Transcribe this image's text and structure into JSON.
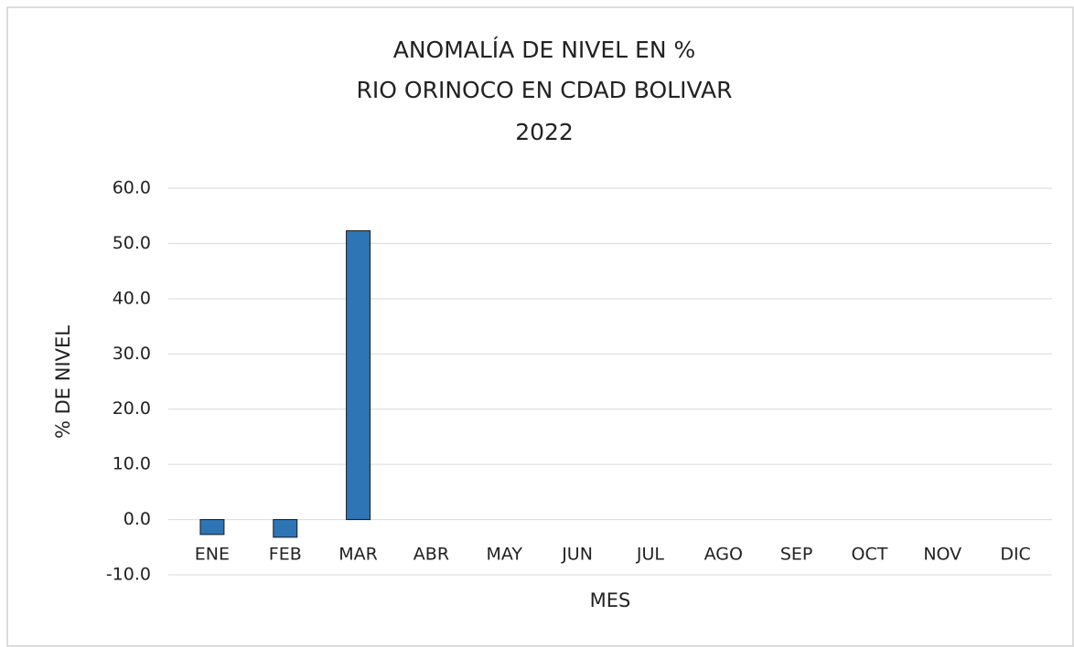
{
  "chart_data": {
    "type": "bar",
    "title": [
      "ANOMALÍA DE NIVEL EN %",
      "RIO ORINOCO EN CDAD BOLIVAR",
      "2022"
    ],
    "x_label": "MES",
    "y_label": "% DE NIVEL",
    "categories": [
      "ENE",
      "FEB",
      "MAR",
      "ABR",
      "MAY",
      "JUN",
      "JUL",
      "AGO",
      "SEP",
      "OCT",
      "NOV",
      "DIC"
    ],
    "values": [
      -2.7,
      -3.2,
      52.3,
      null,
      null,
      null,
      null,
      null,
      null,
      null,
      null,
      null
    ],
    "color": "#2e75b6",
    "ylim": [
      -10,
      60
    ],
    "yticks": [
      {
        "value": -10,
        "label": "-10.0"
      },
      {
        "value": 0,
        "label": "0.0"
      },
      {
        "value": 10,
        "label": "10.0"
      },
      {
        "value": 20,
        "label": "20.0"
      },
      {
        "value": 30,
        "label": "30.0"
      },
      {
        "value": 40,
        "label": "40.0"
      },
      {
        "value": 50,
        "label": "50.0"
      },
      {
        "value": 60,
        "label": "60.0"
      }
    ],
    "grid": true
  }
}
